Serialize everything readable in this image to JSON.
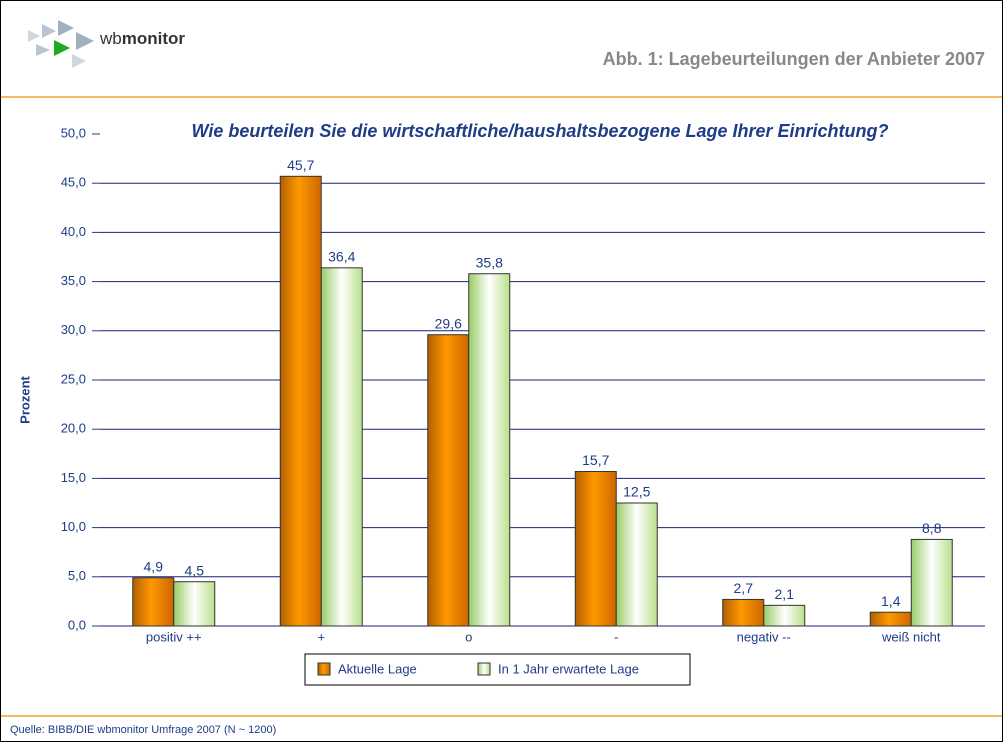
{
  "logo": {
    "light": "wb",
    "bold": "monitor"
  },
  "header_title": "Abb. 1: Lagebeurteilungen der Anbieter 2007",
  "source": "Quelle: BIBB/DIE wbmonitor Umfrage 2007 (N ~ 1200)",
  "chart_data": {
    "type": "bar",
    "title": "Wie beurteilen Sie die wirtschaftliche/haushaltsbezogene Lage Ihrer Einrichtung?",
    "y_label": "Prozent",
    "categories": [
      "positiv ++",
      "+",
      "o",
      "-",
      "negativ --",
      "weiß nicht"
    ],
    "series": [
      {
        "name": "Aktuelle Lage",
        "color": "#ff9900",
        "values": [
          4.9,
          45.7,
          29.6,
          15.7,
          2.7,
          1.4
        ],
        "value_labels": [
          "4,9",
          "45,7",
          "29,6",
          "15,7",
          "2,7",
          "1,4"
        ]
      },
      {
        "name": "In 1 Jahr erwartete Lage",
        "color": "#ccff99",
        "values": [
          4.5,
          36.4,
          35.8,
          12.5,
          2.1,
          8.8
        ],
        "value_labels": [
          "4,5",
          "36,4",
          "35,8",
          "12,5",
          "2,1",
          "8,8"
        ]
      }
    ],
    "ylim": [
      0,
      50
    ],
    "yticks": [
      {
        "value": 0,
        "label": "0,0"
      },
      {
        "value": 5,
        "label": "5,0"
      },
      {
        "value": 10,
        "label": "10,0"
      },
      {
        "value": 15,
        "label": "15,0"
      },
      {
        "value": 20,
        "label": "20,0"
      },
      {
        "value": 25,
        "label": "25,0"
      },
      {
        "value": 30,
        "label": "30,0"
      },
      {
        "value": 35,
        "label": "35,0"
      },
      {
        "value": 40,
        "label": "40,0"
      },
      {
        "value": 45,
        "label": "45,0"
      },
      {
        "value": 50,
        "label": "50,0"
      }
    ],
    "grid": true,
    "legend": "bottom"
  }
}
